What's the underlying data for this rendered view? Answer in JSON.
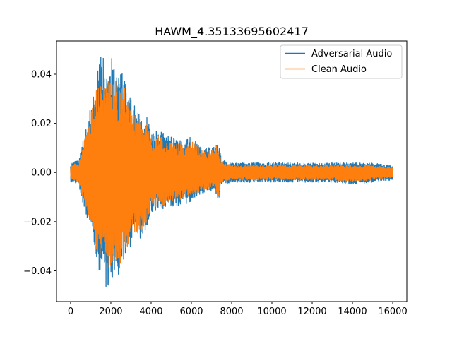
{
  "chart_data": {
    "type": "line",
    "title": "HAWM_4.35133695602417",
    "xlabel": "",
    "ylabel": "",
    "xlim": [
      -700,
      16700
    ],
    "ylim": [
      -0.0525,
      0.0535
    ],
    "x_ticks": [
      0,
      2000,
      4000,
      6000,
      8000,
      10000,
      12000,
      14000,
      16000
    ],
    "x_tick_labels": [
      "0",
      "2000",
      "4000",
      "6000",
      "8000",
      "10000",
      "12000",
      "14000",
      "16000"
    ],
    "y_ticks": [
      -0.04,
      -0.02,
      0.0,
      0.02,
      0.04
    ],
    "y_tick_labels": [
      "−0.04",
      "−0.02",
      "0.00",
      "0.02",
      "0.04"
    ],
    "legend_position": "top-right",
    "grid": false,
    "series": [
      {
        "name": "Adversarial Audio",
        "color": "#1f77b4",
        "envelope": {
          "x": [
            0,
            400,
            600,
            800,
            1000,
            1200,
            1400,
            1600,
            1800,
            2000,
            2200,
            2400,
            2600,
            2800,
            3000,
            3200,
            3400,
            3600,
            3800,
            4000,
            4400,
            4800,
            5200,
            5600,
            6000,
            6400,
            6800,
            7200,
            7300,
            7500,
            8000,
            9000,
            10000,
            11000,
            12000,
            13000,
            14000,
            15000,
            16000
          ],
          "upper": [
            0.004,
            0.005,
            0.013,
            0.019,
            0.027,
            0.034,
            0.045,
            0.049,
            0.048,
            0.05,
            0.044,
            0.041,
            0.042,
            0.033,
            0.03,
            0.027,
            0.026,
            0.019,
            0.023,
            0.017,
            0.017,
            0.015,
            0.014,
            0.013,
            0.015,
            0.011,
            0.01,
            0.011,
            0.014,
            0.005,
            0.004,
            0.004,
            0.004,
            0.004,
            0.004,
            0.004,
            0.004,
            0.004,
            0.003
          ],
          "lower": [
            -0.004,
            -0.005,
            -0.012,
            -0.018,
            -0.022,
            -0.032,
            -0.04,
            -0.044,
            -0.048,
            -0.045,
            -0.04,
            -0.043,
            -0.04,
            -0.034,
            -0.031,
            -0.027,
            -0.027,
            -0.026,
            -0.022,
            -0.016,
            -0.016,
            -0.015,
            -0.014,
            -0.013,
            -0.012,
            -0.009,
            -0.008,
            -0.007,
            -0.013,
            -0.005,
            -0.004,
            -0.004,
            -0.004,
            -0.004,
            -0.004,
            -0.004,
            -0.005,
            -0.004,
            -0.003
          ]
        }
      },
      {
        "name": "Clean Audio",
        "color": "#ff7f0e",
        "envelope": {
          "x": [
            0,
            400,
            600,
            800,
            1000,
            1200,
            1400,
            1600,
            1800,
            2000,
            2200,
            2400,
            2600,
            2800,
            3000,
            3200,
            3400,
            3600,
            3800,
            4000,
            4400,
            4800,
            5200,
            5600,
            6000,
            6400,
            6800,
            7200,
            7300,
            7500,
            8000,
            9000,
            10000,
            11000,
            12000,
            13000,
            14000,
            15000,
            16000
          ],
          "upper": [
            0.003,
            0.004,
            0.011,
            0.017,
            0.024,
            0.03,
            0.038,
            0.04,
            0.04,
            0.042,
            0.038,
            0.036,
            0.037,
            0.03,
            0.027,
            0.025,
            0.024,
            0.017,
            0.02,
            0.015,
            0.015,
            0.013,
            0.012,
            0.011,
            0.013,
            0.01,
            0.009,
            0.01,
            0.012,
            0.004,
            0.003,
            0.003,
            0.003,
            0.003,
            0.003,
            0.003,
            0.003,
            0.003,
            0.002
          ],
          "lower": [
            -0.003,
            -0.004,
            -0.01,
            -0.016,
            -0.02,
            -0.029,
            -0.036,
            -0.038,
            -0.041,
            -0.039,
            -0.036,
            -0.038,
            -0.036,
            -0.031,
            -0.028,
            -0.025,
            -0.025,
            -0.024,
            -0.02,
            -0.014,
            -0.014,
            -0.013,
            -0.012,
            -0.011,
            -0.01,
            -0.008,
            -0.007,
            -0.006,
            -0.012,
            -0.004,
            -0.003,
            -0.003,
            -0.003,
            -0.003,
            -0.003,
            -0.003,
            -0.004,
            -0.003,
            -0.002
          ]
        }
      }
    ]
  }
}
